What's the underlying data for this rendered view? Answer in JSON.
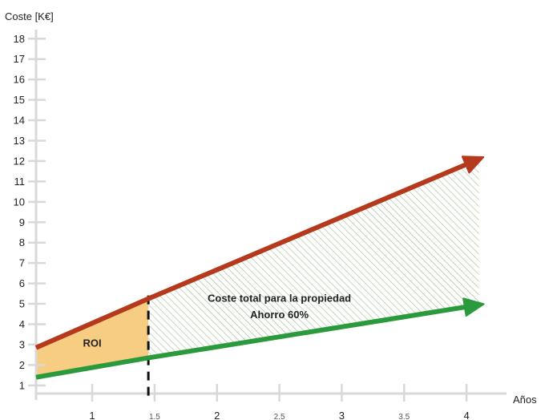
{
  "chart_data": {
    "type": "line",
    "ylabel": "Coste [K€]",
    "xlabel": "Años",
    "xlim": [
      0.55,
      4.25
    ],
    "ylim": [
      0.6,
      18.6
    ],
    "x_ticks": [
      {
        "value": 1,
        "label": "1",
        "minor": false
      },
      {
        "value": 1.5,
        "label": "1.5",
        "minor": true
      },
      {
        "value": 2,
        "label": "2",
        "minor": false
      },
      {
        "value": 2.5,
        "label": "2.5",
        "minor": true
      },
      {
        "value": 3,
        "label": "3",
        "minor": false
      },
      {
        "value": 3.5,
        "label": "3.5",
        "minor": true
      },
      {
        "value": 4,
        "label": "4",
        "minor": false
      }
    ],
    "y_ticks": [
      1,
      2,
      3,
      4,
      5,
      6,
      7,
      8,
      9,
      10,
      11,
      12,
      13,
      14,
      15,
      16,
      17,
      18
    ],
    "series": [
      {
        "id": "high",
        "color": "#b5391c",
        "points": [
          [
            0.55,
            2.85
          ],
          [
            1.45,
            5.25
          ],
          [
            4.1,
            12.1
          ]
        ]
      },
      {
        "id": "low",
        "color": "#2a9a3c",
        "points": [
          [
            0.55,
            1.4
          ],
          [
            1.45,
            2.35
          ],
          [
            4.1,
            4.95
          ]
        ]
      }
    ],
    "breakeven_x": 1.45,
    "roi_color": "#f7cd84",
    "savings_hatch_color": "#9fb88c",
    "annotations": {
      "roi": {
        "text": "ROI",
        "x": 1.0,
        "y": 2.9
      },
      "savings_title": {
        "text": "Coste total para la propiedad",
        "x": 2.5,
        "y": 5.1
      },
      "savings_value": {
        "text": "Ahorro 60%",
        "x": 2.5,
        "y": 4.3
      }
    }
  }
}
